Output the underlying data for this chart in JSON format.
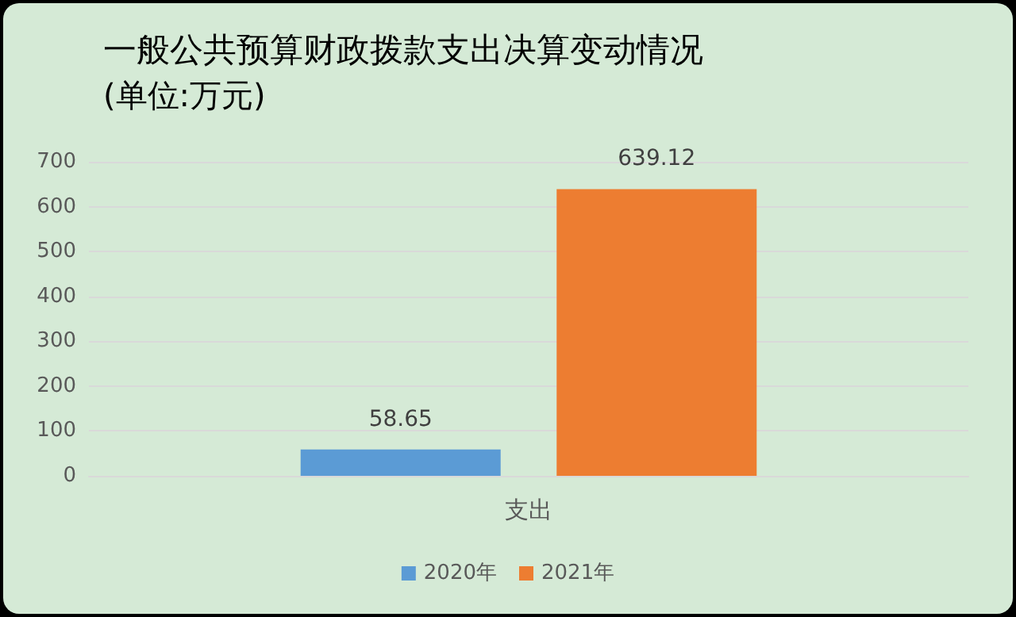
{
  "chart_data": {
    "type": "bar",
    "title": "一般公共预算财政拨款支出决算变动情况",
    "subtitle": "(单位:万元)",
    "categories": [
      "支出"
    ],
    "series": [
      {
        "name": "2020年",
        "color": "#5b9bd5",
        "values": [
          58.65
        ]
      },
      {
        "name": "2021年",
        "color": "#ed7d31",
        "values": [
          639.12
        ]
      }
    ],
    "ylim": [
      0,
      700
    ],
    "yticks": [
      0,
      100,
      200,
      300,
      400,
      500,
      600,
      700
    ],
    "grid": "y",
    "legend": "bottom",
    "data_labels": true
  }
}
